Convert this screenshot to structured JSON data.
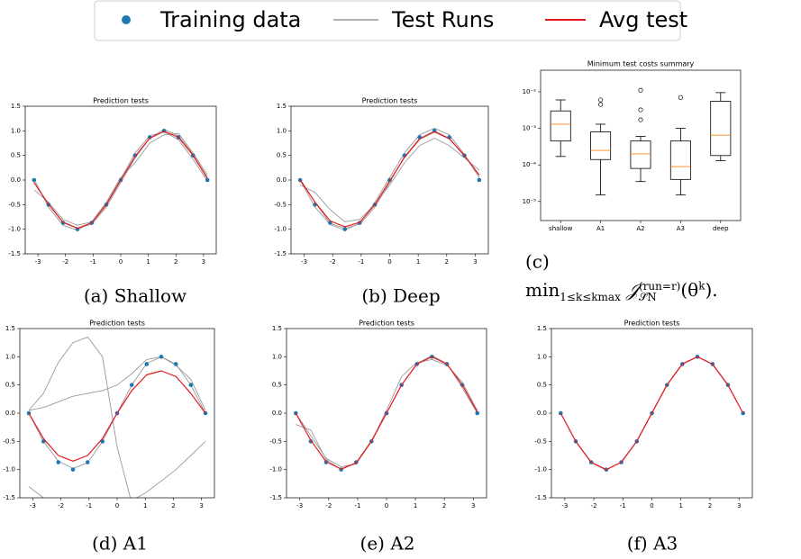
{
  "legend": {
    "entries": [
      {
        "name": "Training data",
        "color": "#1f77b4",
        "marker": "dot"
      },
      {
        "name": "Test Runs",
        "color": "#999999",
        "marker": "line"
      },
      {
        "name": "Avg test",
        "color": "#e31a1c",
        "marker": "line"
      }
    ]
  },
  "captions": [
    "(a) Shallow",
    "(b) Deep",
    "(c)",
    "(d) A1",
    "(e) A2",
    "(f) A3"
  ],
  "formula": {
    "op": "min",
    "op_sub": "1≤k≤kmax",
    "symbol": "𝒥",
    "sup": "(run=r)",
    "sub": "𝒮̃N",
    "arg": "(θ",
    "arg_sup": "k",
    "tail": ")."
  },
  "chart_data": [
    {
      "type": "line",
      "title": "Prediction tests",
      "x": [
        -3.14,
        -2.62,
        -2.09,
        -1.57,
        -1.05,
        -0.52,
        0,
        0.52,
        1.05,
        1.57,
        2.09,
        2.62,
        3.14
      ],
      "xlim": [
        -3.46,
        3.46
      ],
      "xticks": [
        -3,
        -2,
        -1,
        0,
        1,
        2,
        3
      ],
      "ylim": [
        -1.5,
        1.5
      ],
      "yticks": [
        -1.5,
        {
          "value": -1,
          "label": "-1.0"
        },
        -0.5,
        {
          "value": 0,
          "label": "0.0"
        },
        0.5,
        {
          "value": 1,
          "label": "1.0"
        },
        1.5
      ],
      "series": [
        {
          "style": "line",
          "color": "#999999",
          "values": [
            -0.05,
            -0.48,
            -0.85,
            -0.98,
            -0.9,
            -0.55,
            -0.05,
            0.45,
            0.85,
            1.03,
            0.9,
            0.52,
            0.05
          ]
        },
        {
          "style": "line",
          "color": "#999999",
          "values": [
            -0.2,
            -0.45,
            -0.8,
            -0.92,
            -0.85,
            -0.45,
            0.05,
            0.35,
            0.75,
            0.92,
            0.95,
            0.55,
            0.1
          ]
        },
        {
          "style": "line",
          "color": "#999999",
          "values": [
            0.02,
            -0.55,
            -0.92,
            -1.02,
            -0.85,
            -0.48,
            0.02,
            0.55,
            0.9,
            0.98,
            0.82,
            0.42,
            -0.02
          ]
        },
        {
          "style": "markers",
          "color": "#1f77b4",
          "values": [
            0,
            -0.5,
            -0.87,
            -1,
            -0.87,
            -0.5,
            0,
            0.5,
            0.87,
            1,
            0.87,
            0.5,
            0
          ]
        },
        {
          "style": "line",
          "color": "#e31a1c",
          "values": [
            -0.05,
            -0.49,
            -0.86,
            -0.98,
            -0.87,
            -0.5,
            0,
            0.48,
            0.85,
            0.99,
            0.87,
            0.5,
            0.03
          ]
        }
      ]
    },
    {
      "type": "line",
      "title": "Prediction tests",
      "x": [
        -3.14,
        -2.62,
        -2.09,
        -1.57,
        -1.05,
        -0.52,
        0,
        0.52,
        1.05,
        1.57,
        2.09,
        2.62,
        3.14
      ],
      "xlim": [
        -3.46,
        3.46
      ],
      "xticks": [
        -3,
        -2,
        -1,
        0,
        1,
        2,
        3
      ],
      "ylim": [
        -1.5,
        1.5
      ],
      "yticks": [
        -1.5,
        {
          "value": -1,
          "label": "-1.0"
        },
        -0.5,
        {
          "value": 0,
          "label": "0.0"
        },
        0.5,
        {
          "value": 1,
          "label": "1.0"
        },
        1.5
      ],
      "series": [
        {
          "style": "line",
          "color": "#999999",
          "values": [
            -0.1,
            -0.25,
            -0.6,
            -0.85,
            -0.8,
            -0.5,
            -0.1,
            0.35,
            0.7,
            0.85,
            0.7,
            0.45,
            0.2
          ]
        },
        {
          "style": "line",
          "color": "#999999",
          "values": [
            0,
            -0.55,
            -0.9,
            -1.02,
            -0.88,
            -0.45,
            0.05,
            0.55,
            0.92,
            1.05,
            0.92,
            0.52,
            0.05
          ]
        },
        {
          "style": "line",
          "color": "#999999",
          "values": [
            0.02,
            -0.45,
            -0.88,
            -0.98,
            -0.9,
            -0.55,
            -0.05,
            0.48,
            0.85,
            1,
            0.85,
            0.48,
            0.1
          ]
        },
        {
          "style": "markers",
          "color": "#1f77b4",
          "values": [
            0,
            -0.5,
            -0.87,
            -1,
            -0.87,
            -0.5,
            0,
            0.5,
            0.87,
            1,
            0.87,
            0.5,
            0
          ]
        },
        {
          "style": "line",
          "color": "#e31a1c",
          "values": [
            0,
            -0.45,
            -0.83,
            -0.95,
            -0.86,
            -0.5,
            -0.02,
            0.46,
            0.83,
            0.98,
            0.84,
            0.5,
            0.1
          ]
        }
      ]
    },
    {
      "type": "box",
      "title": "Minimum test costs summary",
      "log": true,
      "categories": [
        "shallow",
        "A1",
        "A2",
        "A3",
        "deep"
      ],
      "ylim": [
        3e-06,
        0.039
      ],
      "yticks": [
        {
          "value": 1e-05,
          "label": "10⁻⁵"
        },
        {
          "value": 0.0001,
          "label": "10⁻⁴"
        },
        {
          "value": 0.001,
          "label": "10⁻³"
        },
        {
          "value": 0.01,
          "label": "10⁻²"
        }
      ],
      "box_color": "#000000",
      "median_color": "#ff7f0e",
      "boxes": [
        {
          "low": 0.00017,
          "q1": 0.00045,
          "median": 0.0013,
          "q3": 0.003,
          "high": 0.006,
          "outliers": []
        },
        {
          "low": 1.5e-05,
          "q1": 0.00014,
          "median": 0.00025,
          "q3": 0.0008,
          "high": 0.0013,
          "outliers": [
            0.0045,
            0.006
          ]
        },
        {
          "low": 3.5e-05,
          "q1": 8e-05,
          "median": 0.0002,
          "q3": 0.00045,
          "high": 0.0006,
          "outliers": [
            0.0017,
            0.0032,
            0.011
          ]
        },
        {
          "low": 1.5e-05,
          "q1": 4e-05,
          "median": 9e-05,
          "q3": 0.00045,
          "high": 0.001,
          "outliers": [
            0.007
          ]
        },
        {
          "low": 0.00013,
          "q1": 0.00018,
          "median": 0.00065,
          "q3": 0.0055,
          "high": 0.0095,
          "outliers": []
        }
      ]
    },
    {
      "type": "line",
      "title": "Prediction tests",
      "x": [
        -3.14,
        -2.62,
        -2.09,
        -1.57,
        -1.05,
        -0.52,
        0,
        0.52,
        1.05,
        1.57,
        2.09,
        2.62,
        3.14
      ],
      "xlim": [
        -3.46,
        3.46
      ],
      "xticks": [
        -3,
        -2,
        -1,
        0,
        1,
        2,
        3
      ],
      "ylim": [
        -1.5,
        1.5
      ],
      "yticks": [
        -1.5,
        {
          "value": -1,
          "label": "-1.0"
        },
        -0.5,
        {
          "value": 0,
          "label": "0.0"
        },
        0.5,
        {
          "value": 1,
          "label": "1.0"
        },
        1.5
      ],
      "series": [
        {
          "style": "line",
          "color": "#999999",
          "values": [
            0.05,
            0.35,
            0.9,
            1.25,
            1.35,
            1,
            -0.6,
            -1.6,
            null,
            null,
            null,
            null,
            null
          ]
        },
        {
          "style": "line",
          "color": "#999999",
          "values": [
            0.05,
            0.1,
            0.2,
            0.3,
            0.35,
            0.4,
            0.5,
            0.7,
            0.95,
            1,
            0.85,
            0.6,
            0.05
          ]
        },
        {
          "style": "line",
          "color": "#999999",
          "values": [
            -1.3,
            -1.5,
            null,
            null,
            null,
            null,
            null,
            -1.55,
            -1.4,
            -1.2,
            -1,
            -0.75,
            -0.5
          ]
        },
        {
          "style": "line",
          "color": "#999999",
          "values": [
            0,
            -0.5,
            -0.85,
            -0.98,
            -0.88,
            -0.5,
            0,
            0.5,
            0.88,
            1,
            0.87,
            0.5,
            0
          ]
        },
        {
          "style": "markers",
          "color": "#1f77b4",
          "values": [
            0,
            -0.5,
            -0.87,
            -1,
            -0.87,
            -0.5,
            0,
            0.5,
            0.87,
            1,
            0.87,
            0.5,
            0
          ]
        },
        {
          "style": "line",
          "color": "#e31a1c",
          "values": [
            0,
            -0.45,
            -0.75,
            -0.85,
            -0.75,
            -0.45,
            0,
            0.4,
            0.68,
            0.75,
            0.65,
            0.35,
            0
          ]
        }
      ]
    },
    {
      "type": "line",
      "title": "Prediction tests",
      "x": [
        -3.14,
        -2.62,
        -2.09,
        -1.57,
        -1.05,
        -0.52,
        0,
        0.52,
        1.05,
        1.57,
        2.09,
        2.62,
        3.14
      ],
      "xlim": [
        -3.46,
        3.46
      ],
      "xticks": [
        -3,
        -2,
        -1,
        0,
        1,
        2,
        3
      ],
      "ylim": [
        -1.5,
        1.5
      ],
      "yticks": [
        -1.5,
        {
          "value": -1,
          "label": "-1.0"
        },
        -0.5,
        {
          "value": 0,
          "label": "0.0"
        },
        0.5,
        {
          "value": 1,
          "label": "1.0"
        },
        1.5
      ],
      "series": [
        {
          "style": "line",
          "color": "#999999",
          "values": [
            0,
            -0.4,
            -0.8,
            -0.95,
            -0.9,
            -0.5,
            0.05,
            0.65,
            0.9,
            0.95,
            0.85,
            0.55,
            0.05
          ]
        },
        {
          "style": "line",
          "color": "#999999",
          "values": [
            -0.2,
            -0.3,
            -0.82,
            -1,
            -0.88,
            -0.48,
            0,
            0.5,
            0.88,
            1.02,
            0.88,
            0.45,
            0
          ]
        },
        {
          "style": "markers",
          "color": "#1f77b4",
          "values": [
            0,
            -0.5,
            -0.87,
            -1,
            -0.87,
            -0.5,
            0,
            0.5,
            0.87,
            1,
            0.87,
            0.5,
            0
          ]
        },
        {
          "style": "line",
          "color": "#e31a1c",
          "values": [
            0,
            -0.48,
            -0.86,
            -0.99,
            -0.88,
            -0.5,
            0,
            0.5,
            0.87,
            1,
            0.87,
            0.5,
            0.02
          ]
        }
      ]
    },
    {
      "type": "line",
      "title": "Prediction tests",
      "x": [
        -3.14,
        -2.62,
        -2.09,
        -1.57,
        -1.05,
        -0.52,
        0,
        0.52,
        1.05,
        1.57,
        2.09,
        2.62,
        3.14
      ],
      "xlim": [
        -3.46,
        3.46
      ],
      "xticks": [
        -3,
        -2,
        -1,
        0,
        1,
        2,
        3
      ],
      "ylim": [
        -1.5,
        1.5
      ],
      "yticks": [
        -1.5,
        {
          "value": -1,
          "label": "-1.0"
        },
        -0.5,
        {
          "value": 0,
          "label": "0.0"
        },
        0.5,
        {
          "value": 1,
          "label": "1.0"
        },
        1.5
      ],
      "series": [
        {
          "style": "line",
          "color": "#999999",
          "values": [
            0,
            -0.51,
            -0.88,
            -1.01,
            -0.86,
            -0.49,
            0.01,
            0.51,
            0.88,
            1,
            0.86,
            0.49,
            0
          ]
        },
        {
          "style": "markers",
          "color": "#1f77b4",
          "values": [
            0,
            -0.5,
            -0.87,
            -1,
            -0.87,
            -0.5,
            0,
            0.5,
            0.87,
            1,
            0.87,
            0.5,
            0
          ]
        },
        {
          "style": "line",
          "color": "#e31a1c",
          "values": [
            0,
            -0.5,
            -0.87,
            -1,
            -0.87,
            -0.5,
            0,
            0.5,
            0.87,
            1,
            0.87,
            0.5,
            0
          ]
        }
      ]
    }
  ]
}
